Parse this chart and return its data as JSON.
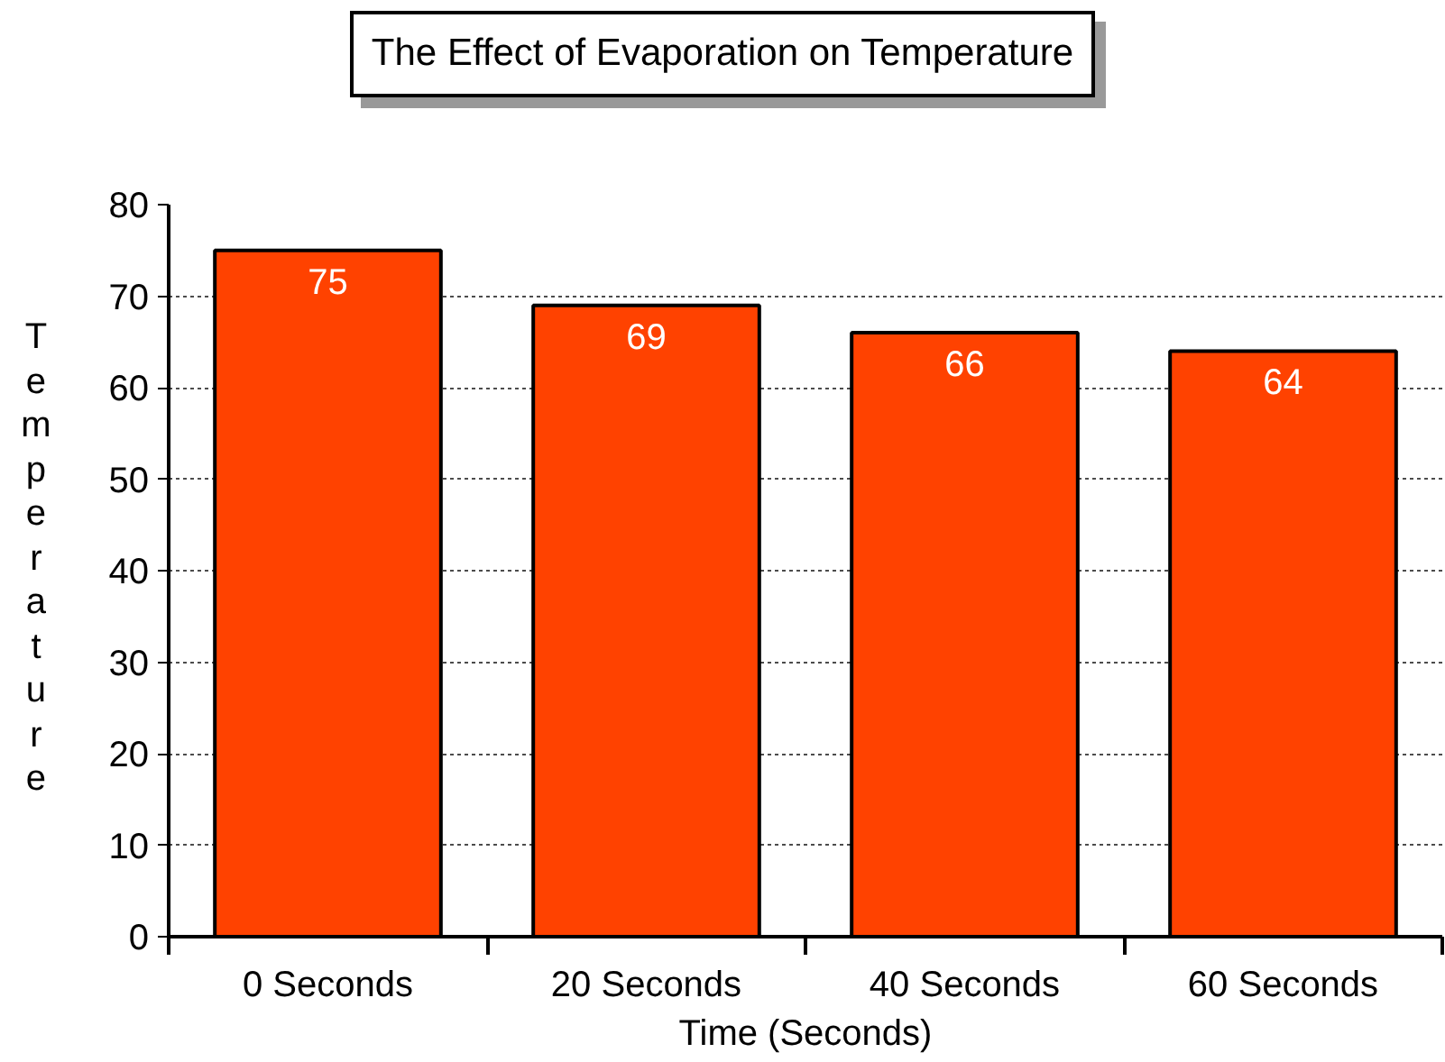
{
  "chart_data": {
    "type": "bar",
    "title": "The Effect of Evaporation on Temperature",
    "xlabel": "Time (Seconds)",
    "ylabel": "Temperature",
    "categories": [
      "0 Seconds",
      "20 Seconds",
      "40 Seconds",
      "60 Seconds"
    ],
    "values": [
      75,
      69,
      66,
      64
    ],
    "color": "#ff4200",
    "ylim": [
      0,
      80
    ],
    "yticks": [
      0,
      10,
      20,
      30,
      40,
      50,
      60,
      70,
      80
    ],
    "grid": "y",
    "data_labels": true
  }
}
